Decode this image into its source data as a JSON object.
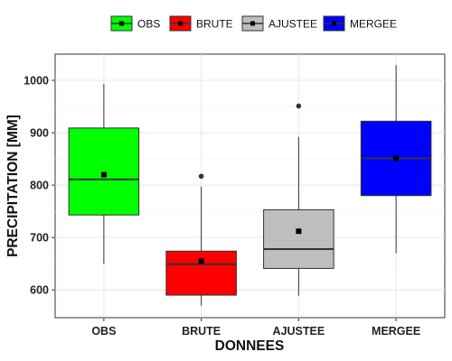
{
  "chart_data": {
    "type": "boxplot",
    "xlabel": "DONNEES",
    "ylabel": "PRECIPITATION [MM]",
    "ylim": [
      547,
      1050
    ],
    "yticks": [
      600,
      700,
      800,
      900,
      1000
    ],
    "grid": true,
    "legend": {
      "position": "top",
      "entries": [
        "OBS",
        "BRUTE",
        "AJUSTEE",
        "MERGEE"
      ]
    },
    "categories": [
      "OBS",
      "BRUTE",
      "AJUSTEE",
      "MERGEE"
    ],
    "colors": [
      "#00ff00",
      "#ff0000",
      "#bebebe",
      "#0000ff"
    ],
    "boxes": [
      {
        "name": "OBS",
        "min": 650,
        "q1": 743,
        "median": 811,
        "q3": 909,
        "max": 993,
        "mean": 820,
        "outliers": []
      },
      {
        "name": "BRUTE",
        "min": 570,
        "q1": 590,
        "median": 649,
        "q3": 674,
        "max": 797,
        "mean": 655,
        "outliers": [
          817
        ]
      },
      {
        "name": "AJUSTEE",
        "min": 589,
        "q1": 641,
        "median": 678,
        "q3": 753,
        "max": 892,
        "mean": 712,
        "outliers": [
          951
        ]
      },
      {
        "name": "MERGEE",
        "min": 670,
        "q1": 780,
        "median": 851,
        "q3": 922,
        "max": 1029,
        "mean": 851,
        "outliers": []
      }
    ]
  }
}
